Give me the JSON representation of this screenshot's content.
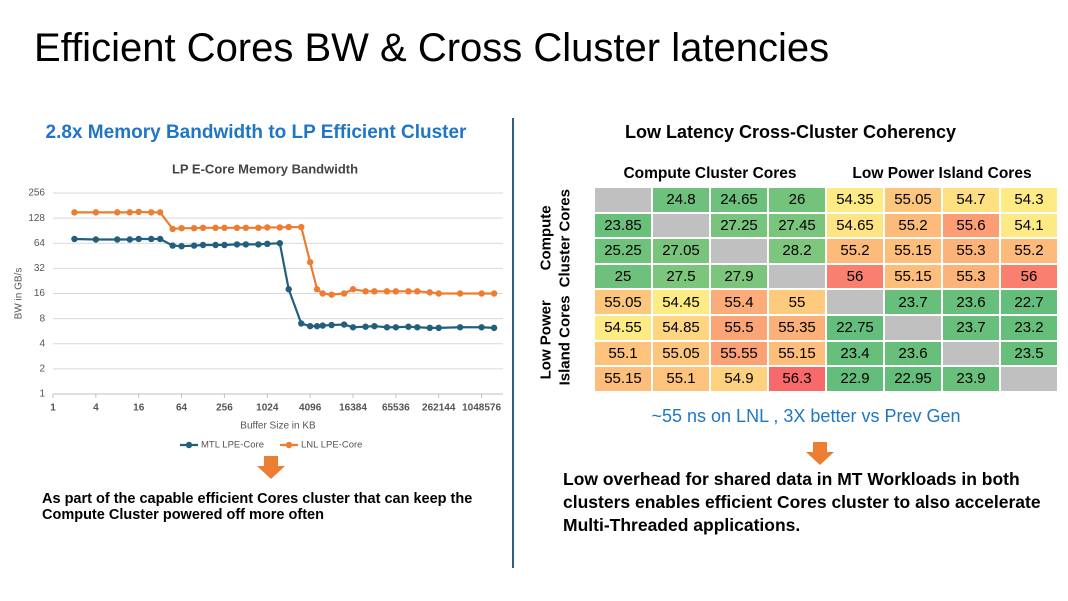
{
  "title": "Efficient Cores BW & Cross Cluster latencies",
  "left": {
    "heading": "2.8x Memory Bandwidth to LP Efficient Cluster",
    "note": "As part of the capable efficient Cores cluster that can keep the Compute Cluster powered off more often"
  },
  "chart_data": {
    "type": "line",
    "title": "LP E-Core Memory Bandwidth",
    "x_label": "Buffer Size in KB",
    "y_label": "BW in GB/s",
    "xscale": "log",
    "yscale": "log",
    "grid": true,
    "legend": "bottom",
    "x": [
      2,
      4,
      8,
      12,
      16,
      24,
      32,
      48,
      64,
      96,
      128,
      192,
      256,
      384,
      512,
      768,
      1024,
      1536,
      2048,
      3072,
      4096,
      5120,
      6144,
      8192,
      12288,
      16384,
      24576,
      32768,
      49152,
      65536,
      98304,
      131072,
      196608,
      262144,
      524288,
      1048576,
      1572864
    ],
    "series": [
      {
        "name": "MTL LPE-Core",
        "color": "#215f7c",
        "values": [
          72,
          71,
          71,
          71,
          72,
          72,
          72,
          60,
          59,
          60,
          61,
          61,
          61,
          62,
          62,
          62,
          63,
          64,
          18,
          7,
          6.5,
          6.5,
          6.6,
          6.7,
          6.8,
          6.3,
          6.4,
          6.5,
          6.3,
          6.3,
          6.4,
          6.3,
          6.2,
          6.2,
          6.3,
          6.3,
          6.2
        ]
      },
      {
        "name": "LNL LPE-Core",
        "color": "#ed7d31",
        "values": [
          150,
          150,
          150,
          150,
          152,
          150,
          150,
          95,
          97,
          97,
          98,
          98,
          98,
          98,
          98,
          98,
          99,
          99,
          100,
          100,
          38,
          18,
          16,
          15.5,
          16,
          18,
          17,
          17,
          17,
          17,
          17,
          17,
          16.5,
          16,
          16,
          16,
          16
        ]
      }
    ],
    "xlim": [
      1,
      2097152
    ],
    "xticks": [
      1,
      4,
      16,
      64,
      256,
      1024,
      4096,
      16384,
      65536,
      262144,
      1048576
    ],
    "ylim": [
      1,
      256
    ],
    "yticks": [
      1,
      2,
      4,
      8,
      16,
      32,
      64,
      128,
      256
    ]
  },
  "right": {
    "heading": "Low Latency Cross-Cluster Coherency",
    "table": {
      "column_groups": [
        "Compute Cluster Cores",
        "Low Power Island Cores"
      ],
      "row_groups": [
        "Compute Cluster Cores",
        "Low Power Island Cores"
      ],
      "colors": {
        "low": "#63be7b",
        "mid": "#ffeb84",
        "high": "#f8696b",
        "empty": "#c0c0c0"
      },
      "rows": [
        [
          null,
          24.8,
          24.65,
          26,
          54.35,
          55.05,
          54.7,
          54.3
        ],
        [
          23.85,
          null,
          27.25,
          27.45,
          54.65,
          55.2,
          55.6,
          54.1
        ],
        [
          25.25,
          27.05,
          null,
          28.2,
          55.2,
          55.15,
          55.3,
          55.2
        ],
        [
          25,
          27.5,
          27.9,
          null,
          56,
          55.15,
          55.3,
          56
        ],
        [
          55.05,
          54.45,
          55.4,
          55,
          null,
          23.7,
          23.6,
          22.7
        ],
        [
          54.55,
          54.85,
          55.5,
          55.35,
          22.75,
          null,
          23.7,
          23.2
        ],
        [
          55.1,
          55.05,
          55.55,
          55.15,
          23.4,
          23.6,
          null,
          23.5
        ],
        [
          55.15,
          55.1,
          54.9,
          56.3,
          22.9,
          22.95,
          23.9,
          null
        ]
      ]
    },
    "caption": "~55 ns on LNL , 3X better vs Prev Gen",
    "note": "Low overhead for shared data in MT Workloads in both clusters enables efficient Cores cluster to also accelerate Multi-Threaded applications."
  }
}
